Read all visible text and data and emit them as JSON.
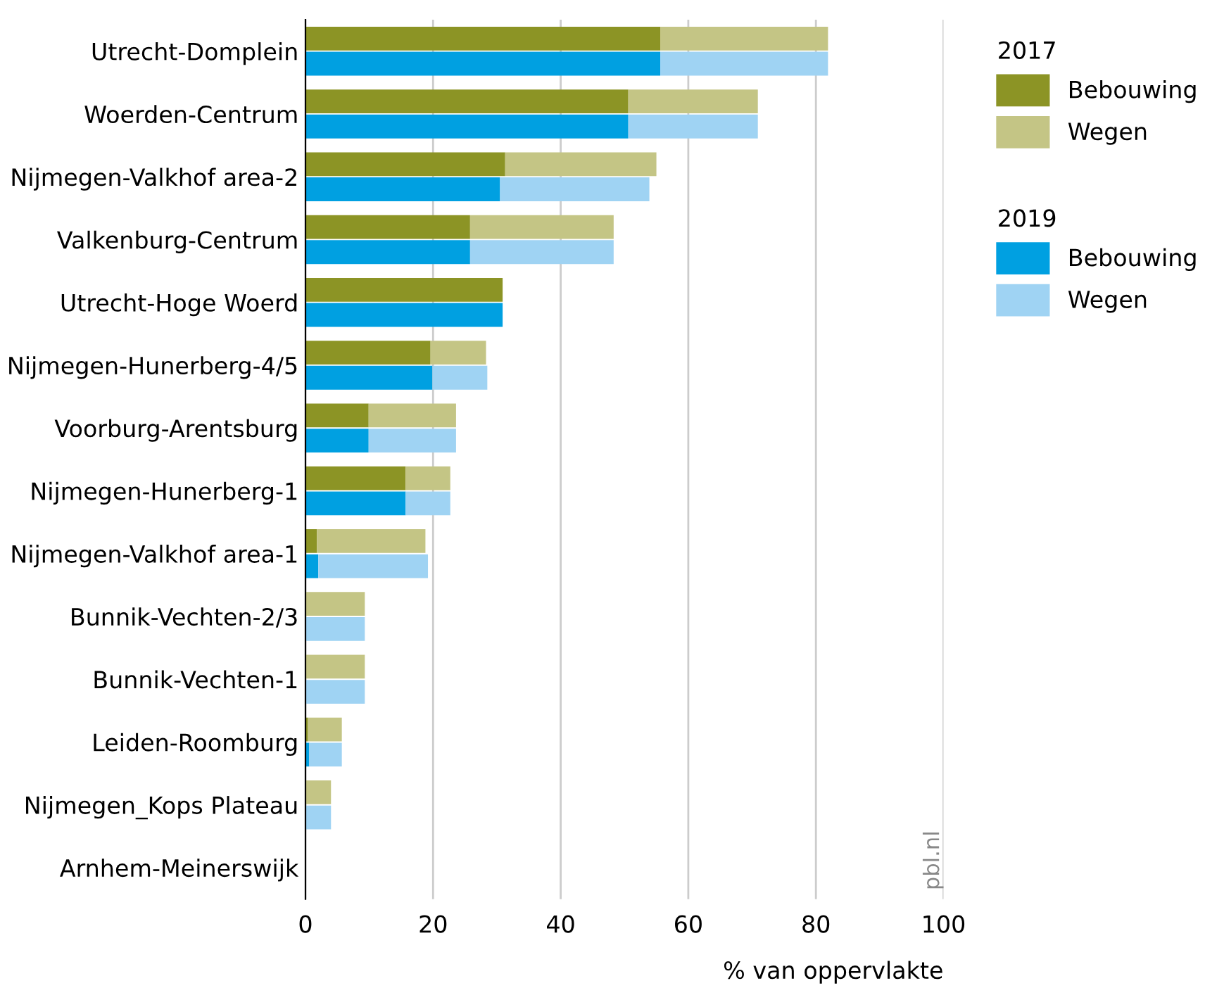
{
  "chart_data": {
    "type": "bar",
    "orientation": "horizontal",
    "categories": [
      "Utrecht-Domplein",
      "Woerden-Centrum",
      "Nijmegen-Valkhof area-2",
      "Valkenburg-Centrum",
      "Utrecht-Hoge Woerd",
      "Nijmegen-Hunerberg-4/5",
      "Voorburg-Arentsburg",
      "Nijmegen-Hunerberg-1",
      "Nijmegen-Valkhof area-1",
      "Bunnik-Vechten-2/3",
      "Bunnik-Vechten-1",
      "Leiden-Roomburg",
      "Nijmegen_Kops Plateau",
      "Arnhem-Meinerswijk"
    ],
    "series": [
      {
        "name": "Bebouwing",
        "color": "#8c9425",
        "values": [
          55.6,
          50.6,
          31.3,
          25.8,
          30.9,
          19.6,
          9.9,
          15.7,
          1.8,
          0,
          0,
          0.4,
          0,
          0
        ],
        "base": [
          0,
          0,
          0,
          0,
          0,
          0,
          0,
          0,
          0,
          null,
          null,
          0,
          null,
          null
        ]
      },
      {
        "name": "Wegen",
        "color": "#c4c585",
        "values": [
          26.3,
          20.3,
          23.7,
          22.5,
          0,
          8.7,
          13.7,
          7.0,
          17.0,
          9.3,
          9.3,
          5.3,
          4.0,
          0
        ],
        "base": [
          55.6,
          50.6,
          31.3,
          25.8,
          null,
          19.6,
          9.9,
          15.7,
          1.8,
          0,
          0,
          0.4,
          0,
          null
        ]
      },
      {
        "name": "Bebouwing",
        "color": "#00a0e1",
        "values": [
          55.6,
          50.6,
          30.5,
          25.8,
          30.9,
          19.9,
          9.9,
          15.7,
          2.0,
          0,
          0,
          0.6,
          0,
          0
        ],
        "base": [
          0,
          0,
          0,
          0,
          0,
          0,
          0,
          0,
          0,
          null,
          null,
          0,
          null,
          null
        ]
      },
      {
        "name": "Wegen",
        "color": "#9fd3f3",
        "values": [
          26.3,
          20.3,
          23.4,
          22.5,
          0,
          8.6,
          13.7,
          7.0,
          17.2,
          9.3,
          9.3,
          5.1,
          4.0,
          0
        ],
        "base": [
          55.6,
          50.6,
          30.5,
          25.8,
          null,
          19.9,
          9.9,
          15.7,
          2.0,
          0,
          0,
          0.6,
          0,
          null
        ]
      }
    ],
    "legend_title": [
      "2017",
      "2019"
    ],
    "legend": "right",
    "xlabel": "% van oppervlakte",
    "xlim": [
      0,
      100
    ],
    "xticks": [
      0,
      20,
      40,
      60,
      80,
      100
    ],
    "grid": "x",
    "annotations": [
      "pbl.nl"
    ]
  }
}
